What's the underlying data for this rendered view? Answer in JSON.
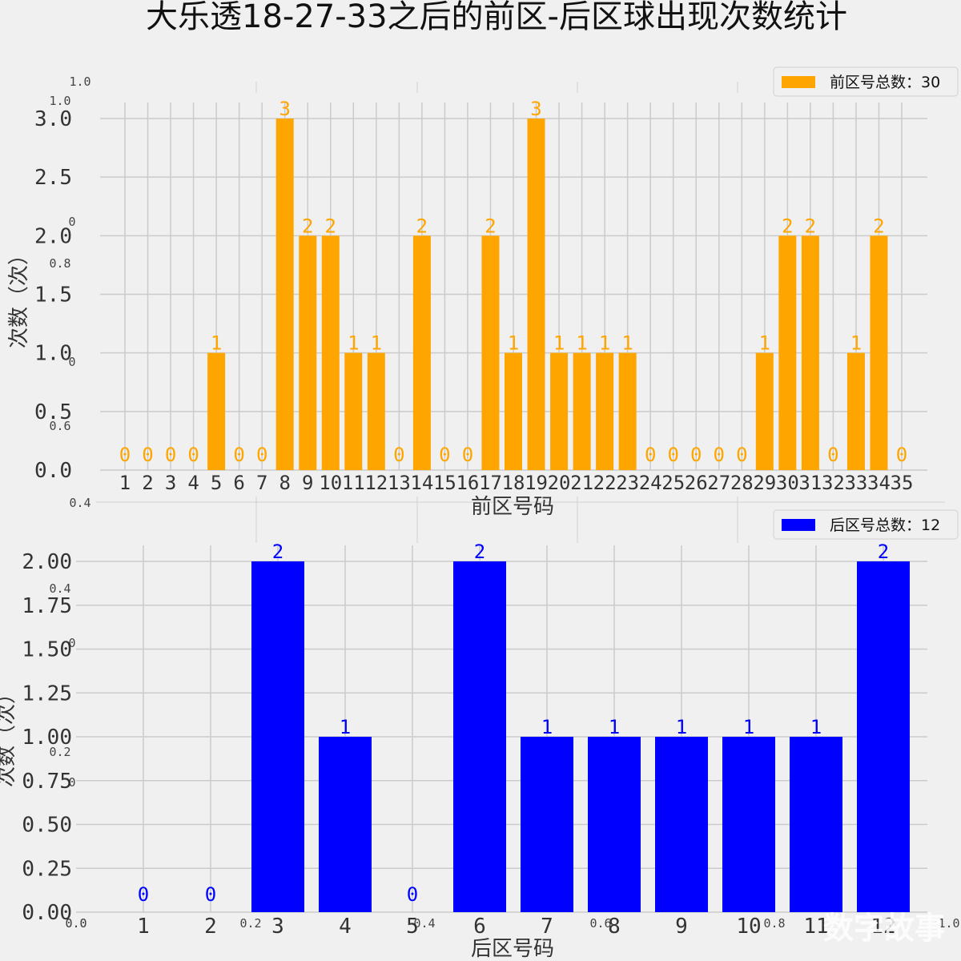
{
  "title": "大乐透18-27-33之后的前区-后区球出现次数统计",
  "watermark": "数字故事",
  "ghost_ticks": {
    "left": [
      "1.0",
      "1.0",
      "0",
      "0.8",
      "0",
      "0.6",
      "0.4",
      "0.4",
      "0",
      "0.2",
      "0",
      "0.0"
    ],
    "bottom": [
      "0.0",
      "0.2",
      "0.4",
      "0.6",
      "0.8",
      "1.0"
    ]
  },
  "chart_data": [
    {
      "type": "bar",
      "color": "#ffa500",
      "legend": "前区号总数：30",
      "xlabel": "前区号码",
      "ylabel": "次数（次）",
      "ylim": [
        0,
        3.0
      ],
      "yticks": [
        "0.0",
        "0.5",
        "1.0",
        "1.5",
        "2.0",
        "2.5",
        "3.0"
      ],
      "categories": [
        "1",
        "2",
        "3",
        "4",
        "5",
        "6",
        "7",
        "8",
        "9",
        "10",
        "11",
        "12",
        "13",
        "14",
        "15",
        "16",
        "17",
        "18",
        "19",
        "20",
        "21",
        "22",
        "23",
        "24",
        "25",
        "26",
        "27",
        "28",
        "29",
        "30",
        "31",
        "32",
        "33",
        "34",
        "35"
      ],
      "values": [
        0,
        0,
        0,
        0,
        1,
        0,
        0,
        3,
        2,
        2,
        1,
        1,
        0,
        2,
        0,
        0,
        2,
        1,
        3,
        1,
        1,
        1,
        1,
        0,
        0,
        0,
        0,
        0,
        1,
        2,
        2,
        0,
        1,
        2,
        0
      ]
    },
    {
      "type": "bar",
      "color": "#0000ff",
      "legend": "后区号总数：12",
      "xlabel": "后区号码",
      "ylabel": "次数（次）",
      "ylim": [
        0,
        2.0
      ],
      "yticks": [
        "0.00",
        "0.25",
        "0.50",
        "0.75",
        "1.00",
        "1.25",
        "1.50",
        "1.75",
        "2.00"
      ],
      "categories": [
        "1",
        "2",
        "3",
        "4",
        "5",
        "6",
        "7",
        "8",
        "9",
        "10",
        "11",
        "12"
      ],
      "values": [
        0,
        0,
        2,
        1,
        0,
        2,
        1,
        1,
        1,
        1,
        1,
        2
      ]
    }
  ]
}
